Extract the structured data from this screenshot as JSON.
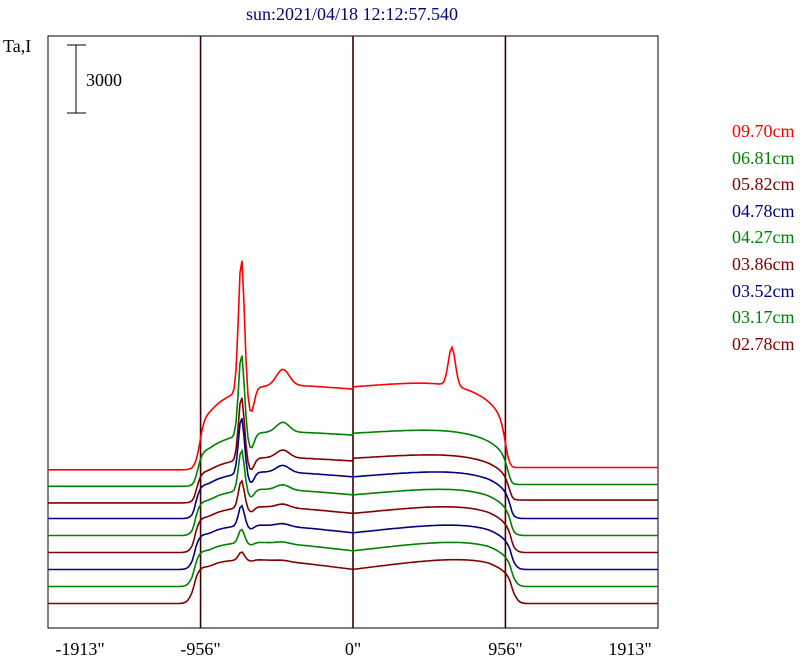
{
  "chart_data": {
    "type": "line",
    "title": "sun:2021/04/18 12:12:57.540",
    "ylabel": "Ta,I",
    "scale_bar": {
      "label": "3000",
      "value": 3000
    },
    "xlim": [
      -1913,
      1913
    ],
    "x_ticks": [
      {
        "value": -1913,
        "label": "-1913\""
      },
      {
        "value": -956,
        "label": "-956\""
      },
      {
        "value": 0,
        "label": "0\""
      },
      {
        "value": 956,
        "label": "956\""
      },
      {
        "value": 1913,
        "label": "1913\""
      }
    ],
    "vlines": [
      -956,
      0,
      956
    ],
    "grid": false,
    "legend_position": "right",
    "series": [
      {
        "name": "09.70cm",
        "color": "#ff0000",
        "offset": 6000,
        "x_edge_out": 930,
        "x_edge_in": 960,
        "edge_rise": 0.11,
        "base_start": -100,
        "base_end": 0,
        "dome_peak": 4000,
        "bump_left": 5900,
        "bump_right": 1700
      },
      {
        "name": "06.81cm",
        "color": "#008000",
        "offset": 5250,
        "x_edge_out": 950,
        "x_edge_in": 975,
        "edge_rise": 0.13,
        "base_start": -80,
        "base_end": 0,
        "dome_peak": 2600,
        "bump_left": 3600,
        "bump_right": 0
      },
      {
        "name": "05.82cm",
        "color": "#800000",
        "offset": 4500,
        "x_edge_out": 965,
        "x_edge_in": 985,
        "edge_rise": 0.16,
        "base_start": -60,
        "base_end": 60,
        "dome_peak": 2200,
        "bump_left": 2800,
        "bump_right": 0
      },
      {
        "name": "04.78cm",
        "color": "#000080",
        "offset": 3750,
        "x_edge_out": 975,
        "x_edge_in": 995,
        "edge_rise": 0.2,
        "base_start": 0,
        "base_end": 0,
        "dome_peak": 2300,
        "bump_left": 2500,
        "bump_right": 0
      },
      {
        "name": "04.27cm",
        "color": "#008000",
        "offset": 3000,
        "x_edge_out": 980,
        "x_edge_in": 1000,
        "edge_rise": 0.22,
        "base_start": 0,
        "base_end": 0,
        "dome_peak": 2300,
        "bump_left": 1800,
        "bump_right": 0
      },
      {
        "name": "03.86cm",
        "color": "#800000",
        "offset": 2250,
        "x_edge_out": 985,
        "x_edge_in": 1005,
        "edge_rise": 0.25,
        "base_start": 0,
        "base_end": 0,
        "dome_peak": 2300,
        "bump_left": 1200,
        "bump_right": 0
      },
      {
        "name": "03.52cm",
        "color": "#000080",
        "offset": 1500,
        "x_edge_out": 990,
        "x_edge_in": 1010,
        "edge_rise": 0.28,
        "base_start": 0,
        "base_end": 0,
        "dome_peak": 2250,
        "bump_left": 900,
        "bump_right": 0
      },
      {
        "name": "03.17cm",
        "color": "#008000",
        "offset": 750,
        "x_edge_out": 995,
        "x_edge_in": 1012,
        "edge_rise": 0.3,
        "base_start": 0,
        "base_end": 0,
        "dome_peak": 2250,
        "bump_left": 600,
        "bump_right": 0
      },
      {
        "name": "02.78cm",
        "color": "#800000",
        "offset": 0,
        "x_edge_out": 1000,
        "x_edge_in": 1015,
        "edge_rise": 0.33,
        "base_start": 0,
        "base_end": 0,
        "dome_peak": 2250,
        "bump_left": 350,
        "bump_right": 0
      }
    ]
  }
}
